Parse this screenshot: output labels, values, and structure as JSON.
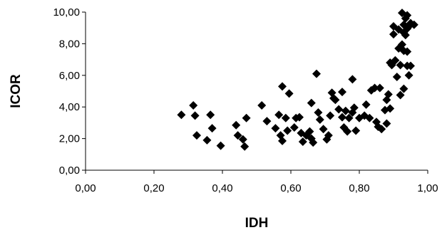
{
  "chart_data": {
    "type": "scatter",
    "xlabel": "IDH",
    "ylabel": "ICOR",
    "xlim": [
      0.0,
      1.0
    ],
    "ylim": [
      0.0,
      10.0
    ],
    "xticks": [
      "0,00",
      "0,20",
      "0,40",
      "0,60",
      "0,80",
      "1,00"
    ],
    "yticks": [
      "0,00",
      "2,00",
      "4,00",
      "6,00",
      "8,00",
      "10,00"
    ],
    "grid": false,
    "legend": "none",
    "marker": "diamond",
    "marker_color": "#000000",
    "series": [
      {
        "points": [
          [
            0.28,
            3.5
          ],
          [
            0.315,
            4.1
          ],
          [
            0.32,
            3.45
          ],
          [
            0.325,
            2.2
          ],
          [
            0.355,
            1.9
          ],
          [
            0.365,
            3.5
          ],
          [
            0.37,
            2.65
          ],
          [
            0.395,
            1.55
          ],
          [
            0.44,
            2.85
          ],
          [
            0.445,
            2.2
          ],
          [
            0.46,
            1.95
          ],
          [
            0.465,
            1.5
          ],
          [
            0.47,
            3.3
          ],
          [
            0.515,
            4.1
          ],
          [
            0.53,
            3.1
          ],
          [
            0.555,
            2.65
          ],
          [
            0.565,
            3.5
          ],
          [
            0.57,
            2.2
          ],
          [
            0.575,
            5.3
          ],
          [
            0.575,
            1.85
          ],
          [
            0.585,
            3.3
          ],
          [
            0.59,
            2.5
          ],
          [
            0.595,
            4.85
          ],
          [
            0.61,
            2.7
          ],
          [
            0.615,
            3.3
          ],
          [
            0.625,
            3.35
          ],
          [
            0.63,
            2.35
          ],
          [
            0.635,
            1.8
          ],
          [
            0.645,
            2.2
          ],
          [
            0.655,
            2.45
          ],
          [
            0.66,
            4.25
          ],
          [
            0.66,
            2.0
          ],
          [
            0.665,
            1.75
          ],
          [
            0.675,
            6.1
          ],
          [
            0.68,
            3.65
          ],
          [
            0.685,
            3.2
          ],
          [
            0.695,
            2.6
          ],
          [
            0.705,
            1.95
          ],
          [
            0.71,
            2.2
          ],
          [
            0.715,
            3.45
          ],
          [
            0.72,
            4.9
          ],
          [
            0.725,
            4.55
          ],
          [
            0.73,
            4.45
          ],
          [
            0.74,
            3.85
          ],
          [
            0.75,
            4.95
          ],
          [
            0.75,
            3.35
          ],
          [
            0.755,
            2.7
          ],
          [
            0.76,
            3.75
          ],
          [
            0.765,
            2.45
          ],
          [
            0.77,
            3.3
          ],
          [
            0.78,
            5.75
          ],
          [
            0.78,
            3.65
          ],
          [
            0.785,
            3.95
          ],
          [
            0.79,
            2.5
          ],
          [
            0.8,
            3.3
          ],
          [
            0.815,
            3.45
          ],
          [
            0.82,
            4.15
          ],
          [
            0.83,
            3.3
          ],
          [
            0.835,
            5.05
          ],
          [
            0.845,
            5.2
          ],
          [
            0.85,
            3.05
          ],
          [
            0.855,
            2.75
          ],
          [
            0.86,
            5.2
          ],
          [
            0.865,
            2.6
          ],
          [
            0.875,
            3.8
          ],
          [
            0.88,
            4.45
          ],
          [
            0.88,
            2.95
          ],
          [
            0.885,
            4.8
          ],
          [
            0.89,
            6.8
          ],
          [
            0.89,
            3.9
          ],
          [
            0.895,
            6.65
          ],
          [
            0.9,
            9.1
          ],
          [
            0.9,
            8.6
          ],
          [
            0.905,
            6.95
          ],
          [
            0.91,
            5.9
          ],
          [
            0.915,
            8.9
          ],
          [
            0.915,
            7.7
          ],
          [
            0.92,
            6.65
          ],
          [
            0.92,
            4.75
          ],
          [
            0.925,
            9.95
          ],
          [
            0.925,
            7.95
          ],
          [
            0.93,
            9.2
          ],
          [
            0.93,
            8.7
          ],
          [
            0.93,
            7.55
          ],
          [
            0.93,
            5.15
          ],
          [
            0.935,
            9.6
          ],
          [
            0.935,
            8.55
          ],
          [
            0.94,
            9.8
          ],
          [
            0.94,
            8.95
          ],
          [
            0.94,
            7.5
          ],
          [
            0.94,
            6.6
          ],
          [
            0.945,
            9.1
          ],
          [
            0.945,
            6.0
          ],
          [
            0.95,
            9.3
          ],
          [
            0.95,
            6.6
          ],
          [
            0.96,
            9.2
          ]
        ]
      }
    ]
  }
}
